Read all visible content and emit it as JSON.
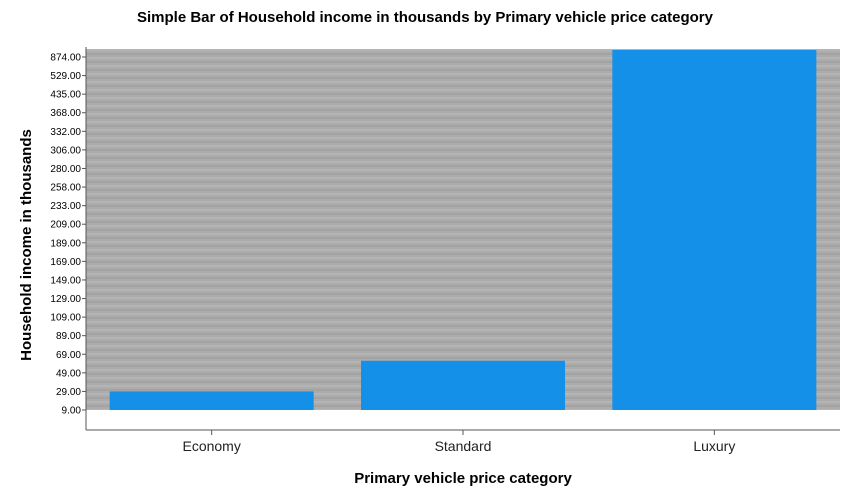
{
  "chart_data": {
    "type": "bar",
    "title": "Simple Bar of Household income in thousands by Primary vehicle price category",
    "xlabel": "Primary vehicle price category",
    "ylabel": "Household income in thousands",
    "categories": [
      "Economy",
      "Standard",
      "Luxury"
    ],
    "values": [
      29.0,
      62.0,
      874.0
    ],
    "y_ticks": [
      "9.00",
      "29.00",
      "49.00",
      "69.00",
      "89.00",
      "109.00",
      "129.00",
      "149.00",
      "169.00",
      "189.00",
      "209.00",
      "233.00",
      "258.00",
      "280.00",
      "306.00",
      "332.00",
      "368.00",
      "435.00",
      "529.00",
      "874.00"
    ],
    "y_scale": "categorical (each listed value evenly spaced)",
    "grid": true,
    "colors": {
      "bar": "#1490e8",
      "plot_background": "#acacac",
      "stripe_dark": "#a3a3a3",
      "stripe_light": "#b4b4b4",
      "axis": "#555555"
    }
  }
}
